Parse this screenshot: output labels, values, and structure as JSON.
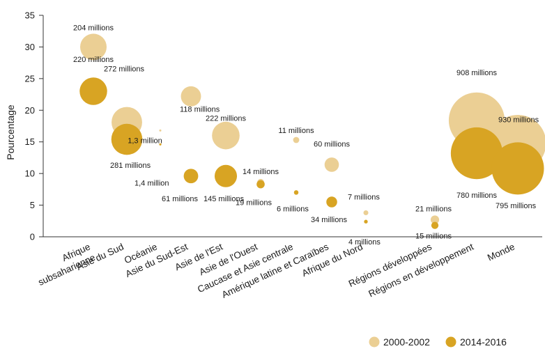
{
  "chart_data": {
    "type": "scatter",
    "title": "",
    "xlabel": "",
    "ylabel": "Pourcentage",
    "ylim": [
      0,
      35
    ],
    "yticks": [
      0,
      5,
      10,
      15,
      20,
      25,
      30,
      35
    ],
    "grid": false,
    "legend_position": "bottom-right",
    "categories": [
      "Afrique subsaharienne",
      "Asie du Sud",
      "Océanie",
      "Asie du Sud-Est",
      "Asie de l'Est",
      "Asie de l'Ouest",
      "Caucase et Asie centrale",
      "Amérique latine et Caraïbes",
      "Afrique du Nord",
      "Régions développées",
      "Régions en développement",
      "Monde"
    ],
    "category_lines": [
      [
        "Afrique",
        "subsaharienne"
      ],
      [
        "Asie du Sud"
      ],
      [
        "Océanie"
      ],
      [
        "Asie du Sud-Est"
      ],
      [
        "Asie de l'Est"
      ],
      [
        "Asie de l'Ouest"
      ],
      [
        "Caucase et Asie centrale"
      ],
      [
        "Amérique latine et Caraïbes"
      ],
      [
        "Afrique du Nord"
      ],
      [
        "Régions développées"
      ],
      [
        "Régions en développement"
      ],
      [
        "Monde"
      ]
    ],
    "series": [
      {
        "name": "2000-2002",
        "color": "#ebcf94",
        "points": [
          {
            "x": "Afrique subsaharienne",
            "y": 30,
            "label": "204 millions"
          },
          {
            "x": "Asie du Sud",
            "y": 18.1,
            "label": "272 millions"
          },
          {
            "x": "Océanie",
            "y": 16.8,
            "label": "1,3 million"
          },
          {
            "x": "Asie du Sud-Est",
            "y": 22.2,
            "label": "118 millions"
          },
          {
            "x": "Asie de l'Est",
            "y": 16,
            "label": "222 millions"
          },
          {
            "x": "Asie de l'Ouest",
            "y": 8.6,
            "label": "14 millions"
          },
          {
            "x": "Caucase et Asie centrale",
            "y": 15.3,
            "label": "11 millions"
          },
          {
            "x": "Amérique latine et Caraïbes",
            "y": 11.4,
            "label": "60 millions"
          },
          {
            "x": "Afrique du Nord",
            "y": 3.8,
            "label": "7 millions"
          },
          {
            "x": "Régions développées",
            "y": 2.7,
            "label": "21 millions"
          },
          {
            "x": "Régions en développement",
            "y": 18.4,
            "label": "908 millions"
          },
          {
            "x": "Monde",
            "y": 14.8,
            "label": "930 millions"
          }
        ]
      },
      {
        "name": "2014-2016",
        "color": "#d8a423",
        "points": [
          {
            "x": "Afrique subsaharienne",
            "y": 23,
            "label": "220 millions"
          },
          {
            "x": "Asie du Sud",
            "y": 15.4,
            "label": "281 millions"
          },
          {
            "x": "Océanie",
            "y": 14.6,
            "label": "1,4 million"
          },
          {
            "x": "Asie du Sud-Est",
            "y": 9.6,
            "label": "61 millions"
          },
          {
            "x": "Asie de l'Est",
            "y": 9.6,
            "label": "145 millions"
          },
          {
            "x": "Asie de l'Ouest",
            "y": 8.3,
            "label": "19 millions"
          },
          {
            "x": "Caucase et Asie centrale",
            "y": 7,
            "label": "6 millions"
          },
          {
            "x": "Amérique latine et Caraïbes",
            "y": 5.5,
            "label": "34 millions"
          },
          {
            "x": "Afrique du Nord",
            "y": 2.4,
            "label": "4 millions"
          },
          {
            "x": "Régions développées",
            "y": 1.8,
            "label": "15 millions"
          },
          {
            "x": "Régions en développement",
            "y": 13.2,
            "label": "780 millions"
          },
          {
            "x": "Monde",
            "y": 10.8,
            "label": "795 millions"
          }
        ]
      }
    ]
  }
}
